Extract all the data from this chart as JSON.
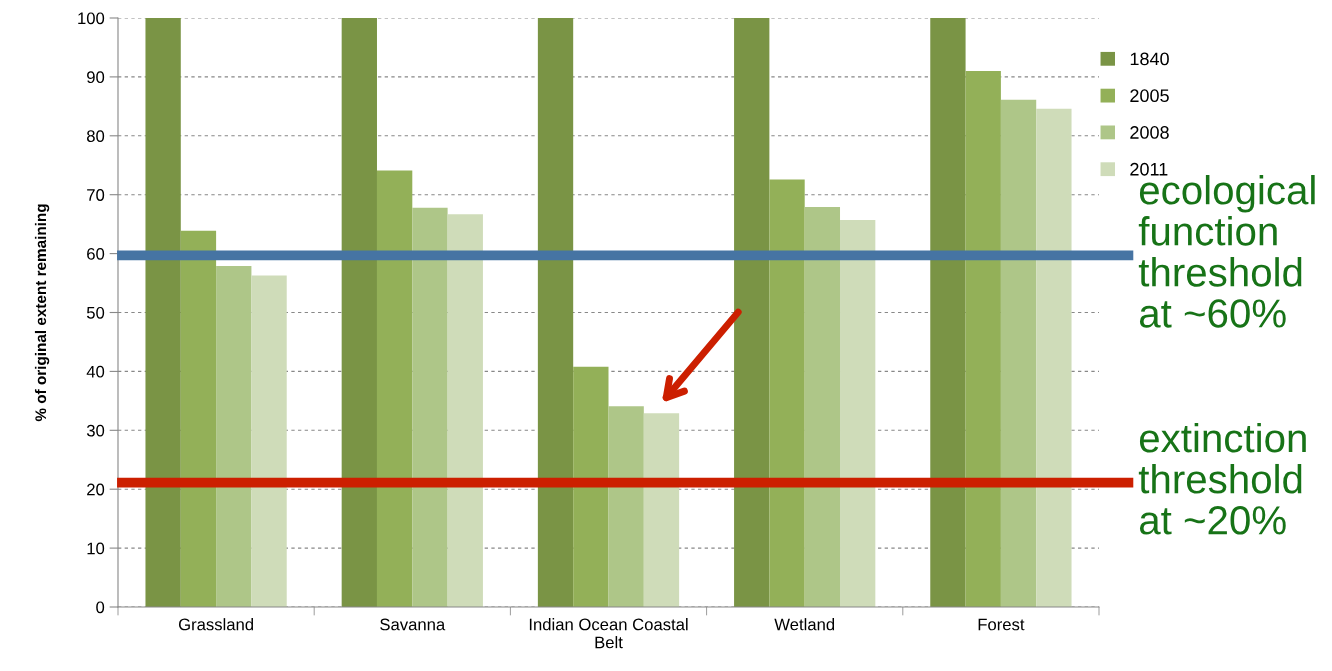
{
  "chart_data": {
    "type": "bar",
    "ylabel": "% of original extent remaining",
    "categories": [
      "Grassland",
      "Savanna",
      "Indian Ocean Coastal\nBelt",
      "Wetland",
      "Forest"
    ],
    "series": [
      {
        "name": "1840",
        "color": "#7a9445",
        "values": [
          100,
          100,
          100,
          100,
          100
        ]
      },
      {
        "name": "2005",
        "color": "#93b058",
        "values": [
          63.9,
          74.1,
          40.8,
          72.6,
          91.0
        ]
      },
      {
        "name": "2008",
        "color": "#aec688",
        "values": [
          57.9,
          67.8,
          34.1,
          67.9,
          86.1
        ]
      },
      {
        "name": "2011",
        "color": "#cfdcb9",
        "values": [
          56.3,
          66.7,
          32.9,
          65.7,
          84.6
        ]
      }
    ],
    "ylim": [
      0,
      100
    ],
    "yticks": [
      0,
      10,
      20,
      30,
      40,
      50,
      60,
      70,
      80,
      90,
      100
    ],
    "grid": "y",
    "legend": "top right",
    "ref_lines": [
      {
        "axis": "y",
        "value": 59.7,
        "label": "ecological\nfunction\nthreshold\nat ~60%",
        "color": "#4674a3"
      },
      {
        "axis": "y",
        "value": 21.1,
        "label": "extinction\nthreshold\nat ~20%",
        "color": "#cc1f00"
      }
    ]
  }
}
